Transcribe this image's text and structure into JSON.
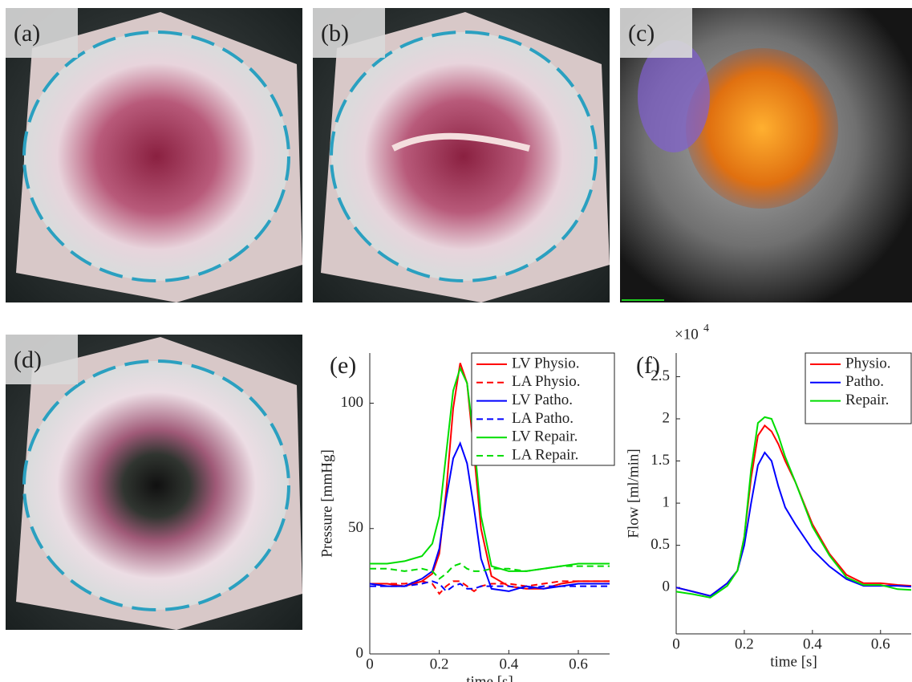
{
  "panels": [
    {
      "label": "(a)"
    },
    {
      "label": "(b)"
    },
    {
      "label": "(c)"
    },
    {
      "label": "(d)"
    }
  ],
  "chart_data": [
    {
      "type": "line",
      "title": "(e)",
      "x_label": "time [s]",
      "y_label": "Pressure [mmHg]",
      "x": [
        0,
        0.05,
        0.1,
        0.15,
        0.18,
        0.2,
        0.22,
        0.24,
        0.26,
        0.28,
        0.3,
        0.32,
        0.35,
        0.4,
        0.45,
        0.5,
        0.55,
        0.6,
        0.65,
        0.69
      ],
      "xlim": [
        0,
        0.69
      ],
      "xticks": [
        0,
        0.2,
        0.4,
        0.6
      ],
      "ylim": [
        0,
        120
      ],
      "yticks": [
        0,
        50,
        100
      ],
      "legend": "top-right",
      "series": [
        {
          "name": "LV Physio.",
          "color": "#ff0000",
          "style": "solid",
          "values": [
            28,
            28,
            27,
            29,
            32,
            40,
            65,
            98,
            116,
            108,
            80,
            50,
            31,
            27,
            26,
            26,
            28,
            29,
            29,
            29
          ]
        },
        {
          "name": "LA Physio.",
          "color": "#ff0000",
          "style": "dashed",
          "values": [
            28,
            28,
            28,
            29,
            28,
            24,
            27,
            29,
            29,
            27,
            25,
            27,
            28,
            28,
            27,
            28,
            29,
            29,
            29,
            29
          ]
        },
        {
          "name": "LV Patho.",
          "color": "#0000ff",
          "style": "solid",
          "values": [
            28,
            27,
            27,
            30,
            33,
            42,
            62,
            78,
            84,
            76,
            58,
            38,
            26,
            25,
            27,
            26,
            27,
            28,
            28,
            28
          ]
        },
        {
          "name": "LA Patho.",
          "color": "#0000ff",
          "style": "dashed",
          "values": [
            27,
            27,
            27,
            28,
            29,
            28,
            25,
            27,
            28,
            26,
            26,
            27,
            27,
            27,
            26,
            27,
            27,
            27,
            27,
            27
          ]
        },
        {
          "name": "LV Repair.",
          "color": "#00dd00",
          "style": "solid",
          "values": [
            36,
            36,
            37,
            39,
            44,
            55,
            80,
            105,
            114,
            108,
            85,
            55,
            35,
            33,
            33,
            34,
            35,
            36,
            36,
            36
          ]
        },
        {
          "name": "LA Repair.",
          "color": "#00dd00",
          "style": "dashed",
          "values": [
            34,
            34,
            33,
            34,
            33,
            30,
            32,
            35,
            36,
            34,
            33,
            33,
            34,
            34,
            33,
            34,
            35,
            35,
            35,
            35
          ]
        }
      ]
    },
    {
      "type": "line",
      "title": "(f)",
      "x_label": "time [s]",
      "y_label": "Flow [ml/min]",
      "multiplier": "×10",
      "multiplier_exp": "4",
      "x": [
        0,
        0.05,
        0.1,
        0.15,
        0.18,
        0.2,
        0.22,
        0.24,
        0.26,
        0.28,
        0.3,
        0.32,
        0.35,
        0.4,
        0.45,
        0.5,
        0.55,
        0.6,
        0.65,
        0.69
      ],
      "xlim": [
        0,
        0.69
      ],
      "xticks": [
        0,
        0.2,
        0.4,
        0.6
      ],
      "ylim": [
        -0.55,
        2.78
      ],
      "yticks": [
        0,
        0.5,
        1,
        1.5,
        2,
        2.5
      ],
      "legend": "top-right",
      "series": [
        {
          "name": "Physio.",
          "color": "#ff0000",
          "style": "solid",
          "values": [
            0,
            -0.05,
            -0.1,
            0.05,
            0.2,
            0.6,
            1.3,
            1.8,
            1.92,
            1.85,
            1.7,
            1.5,
            1.25,
            0.75,
            0.4,
            0.15,
            0.05,
            0.05,
            0.03,
            0.02
          ]
        },
        {
          "name": "Patho.",
          "color": "#0000ff",
          "style": "solid",
          "values": [
            0,
            -0.05,
            -0.1,
            0.05,
            0.2,
            0.5,
            1.0,
            1.45,
            1.6,
            1.5,
            1.2,
            0.95,
            0.75,
            0.45,
            0.25,
            0.1,
            0.02,
            0.02,
            0.02,
            0.01
          ]
        },
        {
          "name": "Repair.",
          "color": "#00dd00",
          "style": "solid",
          "values": [
            -0.05,
            -0.08,
            -0.12,
            0.02,
            0.2,
            0.6,
            1.4,
            1.95,
            2.02,
            2.0,
            1.8,
            1.55,
            1.25,
            0.72,
            0.38,
            0.12,
            0.03,
            0.03,
            -0.02,
            -0.03
          ]
        }
      ]
    }
  ]
}
